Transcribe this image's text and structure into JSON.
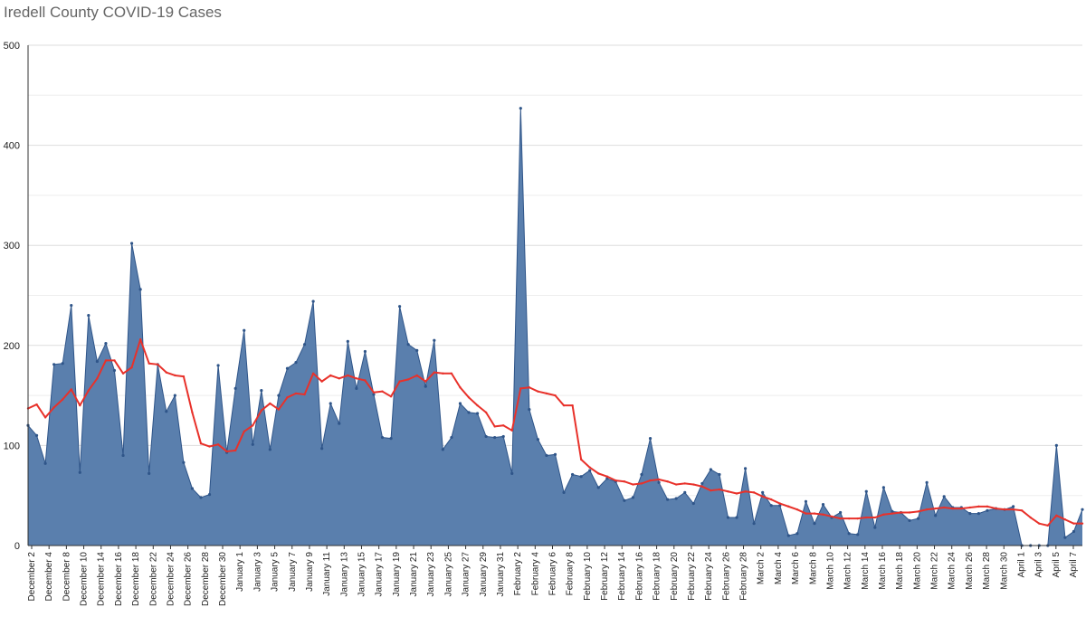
{
  "title": "Iredell County COVID-19 Cases",
  "colors": {
    "area_fill": "#5a7fad",
    "area_stroke": "#2f5589",
    "avg_line": "#e8312a",
    "grid": "#dddddd",
    "axis": "#333333"
  },
  "chart_data": {
    "type": "area",
    "title": "Iredell County COVID-19 Cases",
    "xlabel": "",
    "ylabel": "",
    "ylim": [
      0,
      500
    ],
    "yticks": [
      0,
      100,
      200,
      300,
      400,
      500
    ],
    "grid": true,
    "x_labels": [
      "December 2",
      "December 4",
      "December 8",
      "December 10",
      "December 14",
      "December 16",
      "December 18",
      "December 22",
      "December 24",
      "December 26",
      "December 28",
      "December 30",
      "January 1",
      "January 3",
      "January 5",
      "January 7",
      "January 9",
      "January 11",
      "January 13",
      "January 15",
      "January 17",
      "January 19",
      "January 21",
      "January 23",
      "January 25",
      "January 27",
      "January 29",
      "January 31",
      "February 2",
      "February 4",
      "February 6",
      "February 8",
      "February 10",
      "February 12",
      "February 14",
      "February 16",
      "February 18",
      "February 20",
      "February 22",
      "February 24",
      "February 26",
      "February 28",
      "March 2",
      "March 4",
      "March 6",
      "March 8",
      "March 10",
      "March 12",
      "March 14",
      "March 16",
      "March 18",
      "March 20",
      "March 22",
      "March 24",
      "March 26",
      "March 28",
      "March 30",
      "April 1",
      "April 3",
      "April 5",
      "April 7"
    ],
    "series": [
      {
        "kind": "area",
        "values": [
          120,
          110,
          82,
          181,
          182,
          240,
          73,
          230,
          184,
          202,
          175,
          90,
          302,
          256,
          72,
          181,
          134,
          150,
          83,
          57,
          48,
          51,
          180,
          93,
          157,
          215,
          101,
          155,
          96,
          150,
          177,
          183,
          201,
          244,
          97,
          142,
          122,
          204,
          157,
          194,
          151,
          108,
          107,
          239,
          201,
          195,
          159,
          205,
          96,
          108,
          142,
          133,
          132,
          109,
          108,
          109,
          72,
          437,
          136,
          106,
          90,
          91,
          53,
          71,
          69,
          75,
          58,
          67,
          64,
          45,
          48,
          71,
          107,
          63,
          46,
          47,
          53,
          42,
          62,
          76,
          71,
          28,
          28,
          77,
          22,
          53,
          40,
          40,
          10,
          12,
          44,
          22,
          41,
          28,
          33,
          12,
          11,
          54,
          18,
          58,
          34,
          33,
          25,
          27,
          63,
          30,
          49,
          38,
          38,
          32,
          32,
          35,
          37,
          36,
          39,
          0,
          0,
          0,
          0,
          100,
          8,
          14,
          36
        ]
      },
      {
        "kind": "line",
        "values": [
          137,
          141,
          128,
          138,
          146,
          156,
          140,
          155,
          167,
          185,
          185,
          172,
          178,
          206,
          182,
          181,
          173,
          170,
          169,
          133,
          102,
          99,
          101,
          94,
          95,
          114,
          120,
          135,
          142,
          136,
          148,
          152,
          151,
          172,
          164,
          170,
          167,
          170,
          167,
          165,
          153,
          154,
          149,
          164,
          166,
          170,
          164,
          173,
          172,
          172,
          158,
          148,
          140,
          133,
          119,
          120,
          115,
          157,
          158,
          154,
          152,
          150,
          140,
          140,
          86,
          78,
          72,
          69,
          65,
          64,
          61,
          62,
          65,
          66,
          64,
          61,
          62,
          61,
          59,
          55,
          56,
          54,
          52,
          54,
          53,
          49,
          46,
          42,
          39,
          36,
          32,
          32,
          31,
          29,
          27,
          27,
          27,
          28,
          28,
          31,
          32,
          33,
          33,
          34,
          36,
          37,
          38,
          37,
          37,
          38,
          39,
          39,
          37,
          36,
          36,
          35,
          28,
          22,
          20,
          30,
          26,
          22,
          22
        ]
      }
    ]
  }
}
